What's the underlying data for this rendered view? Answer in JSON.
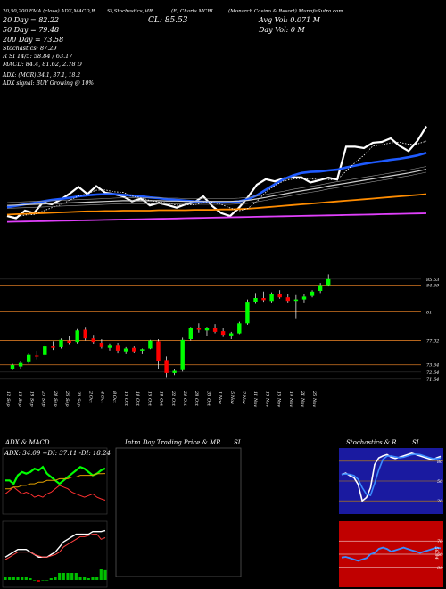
{
  "header": {
    "line1": [
      {
        "text": "20,50,200  EMA (close) ADX,MACD,R"
      },
      {
        "text": "SI,Stochastics,MR"
      },
      {
        "text": "(E) Charts MCRI"
      },
      {
        "text": "(Monarch Casino  & Resort)  MunafaSutra.com"
      }
    ],
    "ema20": "20 Day = 82.22",
    "ema50": "50 Day = 79.48",
    "ema200": "200 Day = 73.58",
    "stochastics": "Stochastics: 87.29",
    "rsi": "R         SI 14/5: 58.84  / 63.17",
    "macd": "MACD: 84.4, 81.62, 2.78  D",
    "close": "CL: 85.53",
    "avg_vol": "Avg Vol: 0.071 M",
    "day_vol": "Day Vol: 0   M",
    "adx": "ADX:                 (MGR) 34.1, 37.1, 18.2",
    "adx_signal": "ADX  signal:                  BUY Growing @ 10%"
  },
  "price_levels": [
    "85.53",
    "84.69",
    "81",
    "77.02",
    "73.64",
    "72.64",
    "71.64"
  ],
  "x_labels": [
    "12 Sep",
    "16 Sep",
    "18 Sep",
    "20 Sep",
    "24 Sep",
    "26 Sep",
    "30 Sep",
    "2 Oct",
    "4 Oct",
    "8 Oct",
    "10 Oct",
    "14 Oct",
    "16 Oct",
    "18 Oct",
    "22 Oct",
    "24 Oct",
    "28 Oct",
    "30 Oct",
    "1 Nov",
    "5 Nov",
    "7 Nov",
    "11 Nov",
    "13 Nov",
    "15 Nov",
    "19 Nov",
    "21 Nov",
    "25 Nov"
  ],
  "panels": {
    "adx_title": "ADX  & MACD",
    "adx_reading": "ADX: 34.09  +DI: 37.11  -DI: 18.24",
    "intra_title": "Intra Day Trading Price  & MR",
    "intra_si": "SI",
    "stoch_title": "Stochastics & R",
    "stoch_si": "SI",
    "stoch_levels": [
      "80",
      "50",
      "20"
    ],
    "rsi_levels": [
      "70",
      "50",
      "30"
    ],
    "rsi_reading": "58.84"
  },
  "colors": {
    "price_line": "#ffffff",
    "ema20": "#1f5bff",
    "ema50": "#cfcfcf",
    "ema200_lower": "#ff8c00",
    "ema200_bottom": "#e040fb",
    "up_candle": "#00ff00",
    "down_candle": "#ff0000",
    "level_line": "#b5651d",
    "stoch_bg": "#1a1aa0",
    "rsi_bg": "#c00000"
  },
  "chart_data": {
    "type": "candlestick",
    "series": [
      {
        "name": "price",
        "values": [
          68.6,
          68.0,
          70.1,
          69.4,
          72.3,
          71.8,
          73.1,
          74.7,
          76.6,
          74.6,
          76.8,
          75.0,
          74.6,
          74.0,
          72.6,
          73.4,
          71.5,
          72.2,
          71.6,
          70.9,
          71.8,
          72.4,
          74.0,
          71.3,
          69.4,
          68.6,
          70.9,
          73.8,
          77.2,
          78.7,
          78.1,
          78.9,
          79.2,
          79.2,
          77.8,
          78.4,
          79.1,
          78.6,
          87.6,
          87.6,
          87.2,
          88.7,
          88.9,
          89.9,
          87.8,
          86.4,
          89.2,
          93.2
        ]
      },
      {
        "name": "ema_20",
        "values": [
          71.0,
          71.4,
          71.8,
          72.2,
          72.6,
          73.0,
          73.3,
          73.6,
          74.0,
          74.3,
          74.5,
          74.6,
          74.6,
          74.4,
          74.2,
          74.0,
          73.7,
          73.5,
          73.2,
          73.0,
          72.8,
          72.6,
          72.5,
          72.4,
          72.3,
          72.4,
          72.6,
          73.2,
          74.3,
          75.8,
          77.3,
          78.7,
          79.7,
          80.4,
          80.7,
          80.8,
          81.1,
          81.3,
          81.9,
          82.4,
          82.9,
          83.3,
          83.6,
          84.0,
          84.3,
          84.7,
          85.2,
          85.9
        ]
      },
      {
        "name": "ema_50",
        "values": [
          71.5,
          71.6,
          71.7,
          71.8,
          71.9,
          72.0,
          72.1,
          72.2,
          72.3,
          72.4,
          72.5,
          72.6,
          72.7,
          72.8,
          72.8,
          72.8,
          72.8,
          72.8,
          72.7,
          72.7,
          72.6,
          72.6,
          72.6,
          72.6,
          72.6,
          72.6,
          72.7,
          72.9,
          73.3,
          73.7,
          74.2,
          74.6,
          75.1,
          75.5,
          75.9,
          76.3,
          76.8,
          77.2,
          77.6,
          78.0,
          78.4,
          78.8,
          79.2,
          79.6,
          80.0,
          80.4,
          80.9,
          81.4
        ]
      },
      {
        "name": "ema_200",
        "values": [
          69.0,
          69.1,
          69.2,
          69.3,
          69.4,
          69.5,
          69.6,
          69.7,
          69.8,
          69.9,
          69.9,
          70.0,
          70.0,
          70.1,
          70.1,
          70.1,
          70.1,
          70.2,
          70.2,
          70.2,
          70.2,
          70.3,
          70.3,
          70.3,
          70.4,
          70.4,
          70.5,
          70.6,
          70.8,
          71.0,
          71.2,
          71.4,
          71.6,
          71.8,
          72.0,
          72.2,
          72.4,
          72.6,
          72.8,
          73.0,
          73.2,
          73.4,
          73.6,
          73.8,
          74.0,
          74.2,
          74.4,
          74.6
        ]
      },
      {
        "name": "ema_lower",
        "values": [
          67.0,
          67.05,
          67.1,
          67.15,
          67.2,
          67.25,
          67.3,
          67.35,
          67.4,
          67.45,
          67.5,
          67.55,
          67.6,
          67.65,
          67.7,
          67.75,
          67.8,
          67.85,
          67.9,
          67.95,
          68.0,
          68.05,
          68.1,
          68.15,
          68.2,
          68.25,
          68.3,
          68.35,
          68.4,
          68.45,
          68.5,
          68.55,
          68.6,
          68.65,
          68.7,
          68.75,
          68.8,
          68.85,
          68.9,
          68.95,
          69.0,
          69.05,
          69.1,
          69.15,
          69.2,
          69.25,
          69.3,
          69.35
        ]
      }
    ],
    "candles": [
      [
        73.0,
        73.8,
        72.9,
        73.6
      ],
      [
        73.4,
        74.2,
        73.1,
        73.9
      ],
      [
        74.0,
        75.2,
        73.8,
        75.0
      ],
      [
        74.9,
        75.6,
        74.4,
        74.8
      ],
      [
        75.0,
        76.4,
        74.8,
        76.2
      ],
      [
        76.2,
        76.9,
        75.7,
        76.0
      ],
      [
        76.1,
        77.3,
        75.9,
        77.1
      ],
      [
        77.0,
        77.6,
        76.4,
        76.7
      ],
      [
        76.8,
        78.6,
        76.6,
        78.4
      ],
      [
        78.5,
        78.9,
        77.0,
        77.3
      ],
      [
        77.3,
        77.8,
        76.5,
        76.8
      ],
      [
        76.7,
        77.2,
        75.9,
        76.1
      ],
      [
        76.0,
        76.6,
        75.6,
        76.3
      ],
      [
        76.3,
        76.7,
        75.2,
        75.6
      ],
      [
        75.5,
        76.1,
        75.1,
        75.9
      ],
      [
        76.0,
        76.2,
        75.3,
        75.5
      ],
      [
        75.6,
        75.9,
        75.1,
        75.8
      ],
      [
        75.9,
        77.1,
        75.8,
        77.0
      ],
      [
        76.9,
        77.2,
        73.0,
        74.2
      ],
      [
        74.3,
        74.8,
        71.8,
        72.5
      ],
      [
        72.5,
        73.0,
        72.2,
        72.8
      ],
      [
        72.9,
        77.4,
        72.7,
        77.1
      ],
      [
        77.2,
        78.9,
        77.0,
        78.7
      ],
      [
        78.8,
        79.4,
        78.1,
        78.5
      ],
      [
        78.4,
        78.9,
        77.6,
        78.7
      ],
      [
        78.8,
        79.3,
        78.0,
        78.2
      ],
      [
        78.3,
        78.7,
        77.5,
        77.8
      ],
      [
        77.7,
        78.2,
        77.2,
        78.0
      ],
      [
        78.0,
        79.6,
        77.9,
        79.4
      ],
      [
        79.4,
        82.7,
        79.2,
        82.4
      ],
      [
        82.4,
        83.6,
        82.1,
        82.9
      ],
      [
        82.9,
        83.8,
        82.4,
        82.6
      ],
      [
        82.5,
        83.7,
        82.3,
        83.5
      ],
      [
        83.5,
        84.0,
        82.8,
        83.0
      ],
      [
        83.0,
        83.5,
        82.3,
        82.5
      ],
      [
        82.5,
        83.3,
        80.1,
        82.7
      ],
      [
        82.7,
        83.4,
        82.3,
        83.1
      ],
      [
        83.2,
        84.0,
        83.0,
        83.8
      ],
      [
        83.9,
        85.0,
        83.6,
        84.7
      ],
      [
        84.7,
        86.2,
        84.5,
        85.53
      ]
    ],
    "adx_series": {
      "plus_di": [
        30,
        30,
        28,
        33,
        35,
        34,
        35,
        37,
        36,
        38,
        34,
        32,
        30,
        28,
        30,
        32,
        34,
        36,
        38,
        37,
        35,
        33,
        34,
        36,
        37.11
      ],
      "minus_di": [
        22,
        24,
        26,
        24,
        22,
        23,
        22,
        20,
        21,
        20,
        22,
        23,
        25,
        27,
        26,
        25,
        23,
        22,
        21,
        20,
        21,
        22,
        20,
        19,
        18.24
      ],
      "adx": [
        25,
        25,
        26,
        26,
        27,
        27,
        28,
        28,
        29,
        29,
        30,
        30,
        30,
        31,
        31,
        31,
        32,
        32,
        33,
        33,
        33,
        33,
        34,
        34,
        34.09
      ]
    },
    "macd_series": {
      "macd": [
        74,
        75,
        76,
        77,
        77,
        77,
        76,
        75,
        74,
        74,
        74,
        75,
        76,
        78,
        80,
        81,
        82,
        83,
        83,
        83,
        83,
        84,
        84,
        84,
        84.4
      ],
      "signal": [
        73,
        74,
        75,
        76,
        76,
        76,
        76,
        75,
        74.5,
        74,
        74,
        74.5,
        75,
        76,
        78,
        79,
        80,
        81,
        82,
        82,
        82.5,
        83,
        83,
        81,
        81.62
      ],
      "hist": [
        1,
        1,
        1,
        1,
        1,
        1,
        0.5,
        0,
        -0.5,
        0,
        0,
        0.5,
        1,
        2,
        2,
        2,
        2,
        2,
        1,
        1,
        0.5,
        1,
        1,
        3,
        2.78
      ]
    },
    "stochastics": [
      60,
      62,
      58,
      55,
      45,
      20,
      25,
      40,
      75,
      85,
      88,
      90,
      86,
      84,
      86,
      88,
      90,
      92,
      90,
      88,
      86,
      84,
      82,
      85,
      87.29
    ],
    "rsi": [
      45,
      46,
      44,
      42,
      40,
      42,
      44,
      50,
      52,
      58,
      60,
      58,
      54,
      56,
      58,
      60,
      58,
      56,
      54,
      52,
      54,
      56,
      58,
      60,
      58.84
    ],
    "xlim": [
      0,
      47
    ],
    "ylim": [
      63,
      96
    ],
    "title": "",
    "xlabel": "",
    "ylabel": ""
  }
}
